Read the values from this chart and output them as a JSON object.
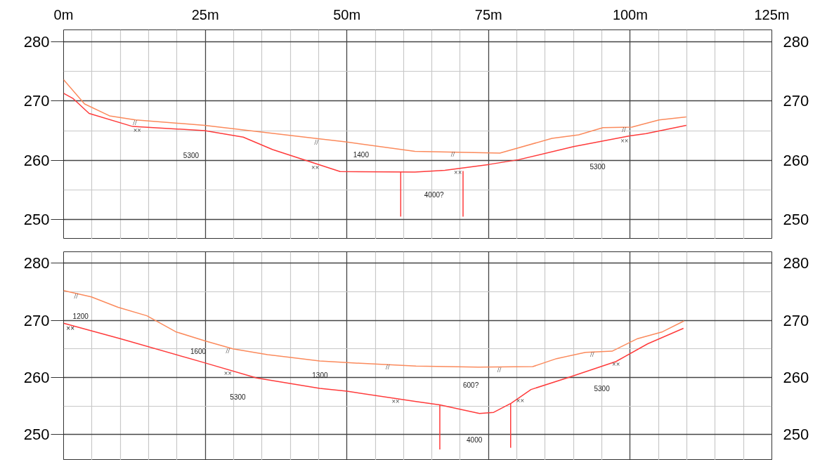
{
  "chart_data": [
    {
      "type": "line",
      "grid": true,
      "line_style": "solid",
      "marker": "none",
      "xlim": [
        0,
        125
      ],
      "ylim": [
        246.7,
        282
      ],
      "y2lim": [
        246.7,
        282
      ],
      "xticks": [
        {
          "value": 0,
          "label": "0m"
        },
        {
          "value": 5,
          "label": null
        },
        {
          "value": 10,
          "label": null
        },
        {
          "value": 15,
          "label": null
        },
        {
          "value": 20,
          "label": null
        },
        {
          "value": 25,
          "label": "25m"
        },
        {
          "value": 30,
          "label": null
        },
        {
          "value": 35,
          "label": null
        },
        {
          "value": 40,
          "label": null
        },
        {
          "value": 45,
          "label": null
        },
        {
          "value": 50,
          "label": "50m"
        },
        {
          "value": 55,
          "label": null
        },
        {
          "value": 60,
          "label": null
        },
        {
          "value": 65,
          "label": null
        },
        {
          "value": 70,
          "label": null
        },
        {
          "value": 75,
          "label": "75m"
        },
        {
          "value": 80,
          "label": null
        },
        {
          "value": 85,
          "label": null
        },
        {
          "value": 90,
          "label": null
        },
        {
          "value": 95,
          "label": null
        },
        {
          "value": 100,
          "label": "100m"
        },
        {
          "value": 105,
          "label": null
        },
        {
          "value": 110,
          "label": null
        },
        {
          "value": 115,
          "label": null
        },
        {
          "value": 120,
          "label": null
        },
        {
          "value": 125,
          "label": "125m"
        }
      ],
      "yticks": [
        250,
        {
          "value": 255,
          "label": null
        },
        260,
        {
          "value": 265,
          "label": null
        },
        270,
        {
          "value": 275,
          "label": null
        },
        280
      ],
      "y2ticks": [
        250,
        260,
        270,
        280
      ],
      "series": [
        {
          "color": "#fb8a5c",
          "x": [
            0,
            3.7,
            8.1,
            12.7,
            24.9,
            45.2,
            49.8,
            62,
            77,
            86.2,
            90.9,
            95.2,
            100.3,
            105.1,
            109.9
          ],
          "values": [
            273.6,
            269.5,
            267.5,
            266.8,
            265.9,
            263.6,
            263.1,
            261.5,
            261.2,
            263.7,
            264.3,
            265.5,
            265.6,
            266.8,
            267.3
          ]
        },
        {
          "color": "#ff3b3b",
          "x": [
            0,
            1.7,
            4.5,
            12.2,
            24.9,
            31.7,
            36.9,
            48.8,
            62,
            67.3,
            75.1,
            80.3,
            90,
            99.9,
            102.8,
            109.9
          ],
          "values": [
            271.3,
            270.4,
            267.9,
            265.7,
            265.0,
            263.9,
            261.8,
            258.1,
            258.0,
            258.3,
            259.3,
            260.1,
            262.3,
            264.1,
            264.5,
            265.9
          ]
        },
        {
          "color": "#ff3b3b",
          "x": [
            59.5,
            59.5
          ],
          "values": [
            258.0,
            250.5
          ]
        },
        {
          "color": "#ff3b3b",
          "x": [
            70.5,
            70.5
          ],
          "values": [
            258.2,
            250.5
          ]
        }
      ],
      "annotations": [
        "5300",
        "1400",
        "4000?",
        "5300",
        {
          "text": "//",
          "x": 12.6,
          "y": 266.4
        },
        {
          "text": "××",
          "x": 13.0,
          "y": 265.1
        },
        {
          "text": "//",
          "x": 44.6,
          "y": 263.1
        },
        {
          "text": "××",
          "x": 44.4,
          "y": 258.8
        },
        {
          "text": "//",
          "x": 68.7,
          "y": 261.0
        },
        {
          "text": "××",
          "x": 69.6,
          "y": 258.0
        },
        {
          "text": "//",
          "x": 98.9,
          "y": 265.2
        },
        {
          "text": "××",
          "x": 99.0,
          "y": 263.3
        }
      ]
    },
    {
      "type": "line",
      "grid": true,
      "line_style": "solid",
      "marker": "none",
      "tick_labels": "y",
      "xlim": [
        0,
        125
      ],
      "ylim": [
        245.5,
        282
      ],
      "y2lim": [
        245.5,
        282
      ],
      "xticks": [
        0,
        {
          "value": 5,
          "label": null
        },
        {
          "value": 10,
          "label": null
        },
        {
          "value": 15,
          "label": null
        },
        {
          "value": 20,
          "label": null
        },
        25,
        {
          "value": 30,
          "label": null
        },
        {
          "value": 35,
          "label": null
        },
        {
          "value": 40,
          "label": null
        },
        {
          "value": 45,
          "label": null
        },
        50,
        {
          "value": 55,
          "label": null
        },
        {
          "value": 60,
          "label": null
        },
        {
          "value": 65,
          "label": null
        },
        {
          "value": 70,
          "label": null
        },
        75,
        {
          "value": 80,
          "label": null
        },
        {
          "value": 85,
          "label": null
        },
        {
          "value": 90,
          "label": null
        },
        {
          "value": 95,
          "label": null
        },
        100,
        {
          "value": 105,
          "label": null
        },
        {
          "value": 110,
          "label": null
        },
        {
          "value": 115,
          "label": null
        },
        {
          "value": 120,
          "label": null
        },
        125
      ],
      "yticks": [
        250,
        {
          "value": 255,
          "label": null
        },
        260,
        {
          "value": 265,
          "label": null
        },
        270,
        {
          "value": 275,
          "label": null
        },
        280
      ],
      "y2ticks": [
        250,
        260,
        270,
        280
      ],
      "series": [
        {
          "color": "#fb8a5c",
          "x": [
            0,
            4.9,
            9.6,
            14.7,
            19.8,
            25.0,
            29.9,
            36.0,
            45.2,
            50.0,
            62.2,
            73.2,
            82.8,
            87,
            92.1,
            96.8,
            101.3,
            105.7,
            109.5
          ],
          "values": [
            275.2,
            274.1,
            272.3,
            270.8,
            268.0,
            266.4,
            265.0,
            264.0,
            262.9,
            262.6,
            262.0,
            261.8,
            261.9,
            263.3,
            264.4,
            264.6,
            266.8,
            268.0,
            269.9
          ]
        },
        {
          "color": "#ff3b3b",
          "x": [
            0,
            10,
            24.8,
            34.1,
            45.2,
            50,
            62.2,
            66.4,
            73.4,
            75.9,
            79,
            82.5,
            89.1,
            97.5,
            103.1,
            109.4
          ],
          "values": [
            269.5,
            266.8,
            262.6,
            259.9,
            258.1,
            257.6,
            255.8,
            255.2,
            253.7,
            253.9,
            255.5,
            257.9,
            260.0,
            262.8,
            265.9,
            268.6
          ]
        },
        {
          "color": "#ff3b3b",
          "x": [
            66.4,
            66.4
          ],
          "values": [
            255.2,
            247.4
          ]
        },
        {
          "color": "#ff3b3b",
          "x": [
            78.9,
            78.9
          ],
          "values": [
            255.5,
            247.7
          ]
        }
      ],
      "annotations": [
        "1200",
        "1600",
        "1300",
        "5300",
        "600?",
        "4000",
        "5300",
        "××",
        {
          "text": "//",
          "x": 2.2,
          "y": 274.2
        },
        {
          "text": "//",
          "x": 29.0,
          "y": 264.7
        },
        {
          "text": "××",
          "x": 29.0,
          "y": 260.7
        },
        {
          "text": "//",
          "x": 57.2,
          "y": 261.8
        },
        {
          "text": "××",
          "x": 58.6,
          "y": 255.8
        },
        {
          "text": "//",
          "x": 76.9,
          "y": 261.4
        },
        {
          "text": "××",
          "x": 80.6,
          "y": 255.9
        },
        {
          "text": "//",
          "x": 93.3,
          "y": 264.0
        },
        {
          "text": "××",
          "x": 97.5,
          "y": 262.3
        }
      ]
    }
  ]
}
